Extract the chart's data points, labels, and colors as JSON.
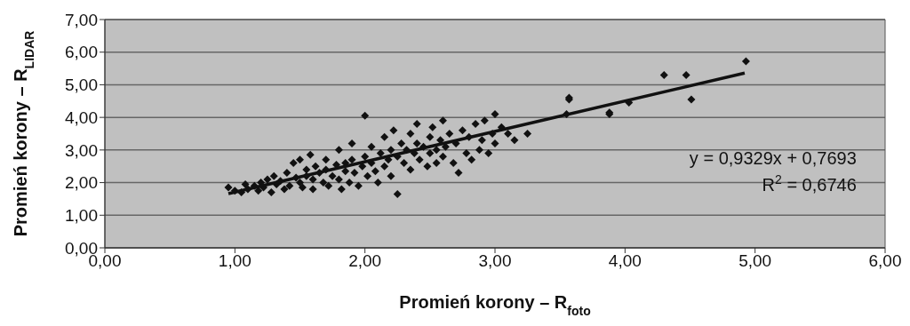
{
  "chart_data": {
    "type": "scatter",
    "xlabel": "Promień korony – R$_{foto}$",
    "ylabel": "Promień korony – R$_{LIDAR}$",
    "xlim": [
      0,
      6
    ],
    "xticks": [
      {
        "value": 0,
        "label": "0,00"
      },
      {
        "value": 1,
        "label": "1,00"
      },
      {
        "value": 2,
        "label": "2,00"
      },
      {
        "value": 3,
        "label": "3,00"
      },
      {
        "value": 4,
        "label": "4,00"
      },
      {
        "value": 5,
        "label": "5,00"
      },
      {
        "value": 6,
        "label": "6,00"
      }
    ],
    "ylim": [
      0,
      7
    ],
    "yticks": [
      {
        "value": 0,
        "label": "0,00"
      },
      {
        "value": 1,
        "label": "1,00"
      },
      {
        "value": 2,
        "label": "2,00"
      },
      {
        "value": 3,
        "label": "3,00"
      },
      {
        "value": 4,
        "label": "4,00"
      },
      {
        "value": 5,
        "label": "5,00"
      },
      {
        "value": 6,
        "label": "6,00"
      },
      {
        "value": 7,
        "label": "7,00"
      }
    ],
    "grid": "y",
    "series": [
      {
        "type": "scatter",
        "marker": "diamond",
        "color": "#111111",
        "x": [
          1.0,
          1.05,
          1.08,
          1.1,
          1.15,
          1.18,
          1.2,
          1.22,
          1.25,
          1.28,
          1.3,
          1.32,
          1.35,
          1.38,
          1.4,
          1.42,
          1.45,
          1.47,
          1.5,
          1.5,
          1.52,
          1.55,
          1.55,
          1.58,
          1.6,
          1.6,
          1.62,
          1.65,
          1.68,
          1.7,
          1.7,
          1.72,
          1.75,
          1.78,
          1.8,
          1.8,
          1.82,
          1.85,
          1.85,
          1.88,
          1.9,
          1.9,
          1.92,
          1.95,
          1.98,
          2.0,
          2.0,
          2.02,
          2.05,
          2.05,
          2.08,
          2.1,
          2.12,
          2.15,
          2.15,
          2.18,
          2.2,
          2.2,
          2.22,
          2.25,
          2.25,
          2.28,
          2.3,
          2.32,
          2.35,
          2.35,
          2.38,
          2.4,
          2.4,
          2.42,
          2.45,
          2.48,
          2.5,
          2.5,
          2.52,
          2.55,
          2.55,
          2.58,
          2.6,
          2.6,
          2.62,
          2.65,
          2.68,
          2.7,
          2.72,
          2.75,
          2.78,
          2.8,
          2.82,
          2.85,
          2.88,
          2.9,
          2.92,
          2.95,
          2.98,
          3.0,
          3.0,
          3.05,
          3.1,
          3.15,
          3.25,
          3.55,
          3.57,
          3.57,
          3.88,
          3.88,
          4.03,
          4.3,
          4.47,
          4.51,
          4.93,
          0.95
        ],
        "values": [
          1.75,
          1.7,
          1.95,
          1.8,
          1.9,
          1.75,
          2.0,
          1.85,
          2.1,
          1.7,
          2.2,
          1.95,
          2.05,
          1.8,
          2.3,
          1.9,
          2.6,
          2.15,
          2.7,
          2.0,
          1.85,
          2.4,
          2.2,
          2.85,
          2.1,
          1.8,
          2.5,
          2.3,
          2.0,
          2.7,
          2.4,
          1.9,
          2.2,
          2.55,
          3.0,
          2.1,
          1.8,
          2.6,
          2.35,
          2.0,
          3.2,
          2.7,
          2.3,
          1.9,
          2.5,
          4.05,
          2.8,
          2.2,
          3.1,
          2.6,
          2.35,
          2.0,
          2.9,
          3.4,
          2.5,
          2.7,
          3.0,
          2.2,
          3.6,
          1.65,
          2.8,
          3.2,
          2.6,
          3.0,
          3.5,
          2.4,
          2.9,
          3.8,
          3.2,
          2.7,
          3.1,
          2.5,
          3.4,
          2.9,
          3.7,
          3.0,
          2.6,
          3.3,
          3.9,
          2.8,
          3.1,
          3.5,
          2.6,
          3.2,
          2.3,
          3.6,
          2.9,
          3.4,
          2.7,
          3.8,
          3.0,
          3.3,
          3.9,
          2.9,
          3.5,
          4.1,
          3.2,
          3.7,
          3.5,
          3.3,
          3.5,
          4.1,
          4.6,
          4.55,
          4.15,
          4.1,
          4.45,
          5.3,
          5.3,
          4.55,
          5.72,
          1.85
        ]
      },
      {
        "type": "line",
        "marker": "none",
        "color": "#111111",
        "x": [
          0.95,
          4.92
        ],
        "values": [
          1.66,
          5.36
        ]
      }
    ],
    "annotations": [
      "y = 0,9329x + 0,7693",
      "R$^{2}$ = 0,6746"
    ]
  }
}
